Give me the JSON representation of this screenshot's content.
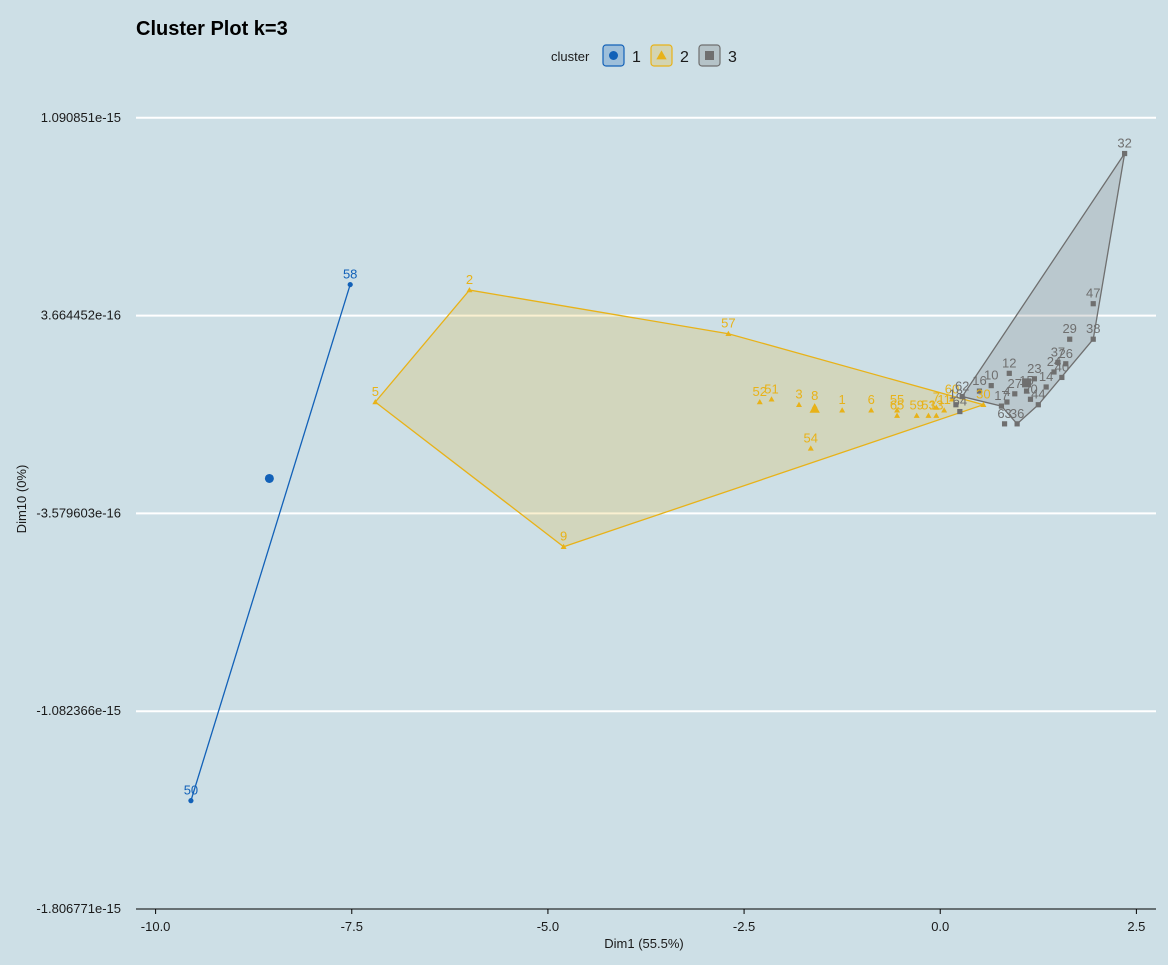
{
  "chart_data": {
    "type": "scatter",
    "title": "Cluster Plot k=3",
    "xlabel": "Dim1 (55.5%)",
    "ylabel": "Dim10 (0%)",
    "xlim": [
      -10.25,
      2.75
    ],
    "ylim": [
      -1.806771e-15,
      1.2e-15
    ],
    "x_ticks": [
      {
        "value": -10.0,
        "label": "-10.0"
      },
      {
        "value": -7.5,
        "label": "-7.5"
      },
      {
        "value": -5.0,
        "label": "-5.0"
      },
      {
        "value": -2.5,
        "label": "-2.5"
      },
      {
        "value": 0.0,
        "label": "0.0"
      },
      {
        "value": 2.5,
        "label": "2.5"
      }
    ],
    "y_ticks": [
      {
        "value": 1.090851e-15,
        "label": "1.090851e-15"
      },
      {
        "value": 3.664452e-16,
        "label": "3.664452e-16"
      },
      {
        "value": -3.579603e-16,
        "label": "-3.579603e-16"
      },
      {
        "value": -1.082366e-15,
        "label": "-1.082366e-15"
      },
      {
        "value": -1.806771e-15,
        "label": "-1.806771e-15"
      }
    ],
    "grid": "horizontal major lines",
    "legend": {
      "title": "cluster",
      "position": "top",
      "entries": [
        "1",
        "2",
        "3"
      ]
    },
    "series": [
      {
        "name": "1",
        "color": "#1261b8",
        "shape": "circle",
        "hull": [
          "58",
          "50"
        ],
        "center": {
          "x": -8.55,
          "y": -2.3e-16
        },
        "points": [
          {
            "label": "58",
            "x": -7.52,
            "y": 4.8e-16
          },
          {
            "label": "50",
            "x": -9.55,
            "y": -1.41e-15
          }
        ]
      },
      {
        "name": "2",
        "color": "#e8b218",
        "shape": "triangle",
        "hull": [
          "2",
          "57",
          "30",
          "9",
          "5"
        ],
        "center": {
          "x": -1.6,
          "y": 2.5e-17
        },
        "points": [
          {
            "label": "2",
            "x": -6.0,
            "y": 4.6e-16
          },
          {
            "label": "57",
            "x": -2.7,
            "y": 3e-16
          },
          {
            "label": "5",
            "x": -7.2,
            "y": 5e-17
          },
          {
            "label": "9",
            "x": -4.8,
            "y": -4.8e-16
          },
          {
            "label": "52",
            "x": -2.3,
            "y": 5e-17
          },
          {
            "label": "51",
            "x": -2.15,
            "y": 6e-17
          },
          {
            "label": "3",
            "x": -1.8,
            "y": 4e-17
          },
          {
            "label": "8",
            "x": -1.6,
            "y": 3.5e-17
          },
          {
            "label": "1",
            "x": -1.25,
            "y": 2e-17
          },
          {
            "label": "6",
            "x": -0.88,
            "y": 2e-17
          },
          {
            "label": "55",
            "x": -0.55,
            "y": 2e-17
          },
          {
            "label": "65",
            "x": -0.55,
            "y": 0.0
          },
          {
            "label": "59",
            "x": -0.3,
            "y": 0.0
          },
          {
            "label": "53",
            "x": -0.15,
            "y": 0.0
          },
          {
            "label": "13",
            "x": -0.05,
            "y": 0.0
          },
          {
            "label": "7",
            "x": -0.05,
            "y": 3e-17
          },
          {
            "label": "11",
            "x": 0.05,
            "y": 2e-17
          },
          {
            "label": "60",
            "x": 0.15,
            "y": 6e-17
          },
          {
            "label": "30",
            "x": 0.55,
            "y": 4e-17
          },
          {
            "label": "54",
            "x": -1.65,
            "y": -1.2e-16
          }
        ]
      },
      {
        "name": "3",
        "color": "#6f6f6f",
        "shape": "square",
        "hull": [
          "32",
          "38",
          "44",
          "36",
          "17",
          "62"
        ],
        "center": {
          "x": 1.1,
          "y": 1.2e-16
        },
        "points": [
          {
            "label": "32",
            "x": 2.35,
            "y": 9.6e-16
          },
          {
            "label": "47",
            "x": 1.95,
            "y": 4.1e-16
          },
          {
            "label": "29",
            "x": 1.65,
            "y": 2.8e-16
          },
          {
            "label": "38",
            "x": 1.95,
            "y": 2.8e-16
          },
          {
            "label": "37",
            "x": 1.5,
            "y": 1.95e-16
          },
          {
            "label": "26",
            "x": 1.6,
            "y": 1.9e-16
          },
          {
            "label": "12",
            "x": 0.88,
            "y": 1.55e-16
          },
          {
            "label": "24",
            "x": 1.45,
            "y": 1.6e-16
          },
          {
            "label": "40",
            "x": 1.55,
            "y": 1.4e-16
          },
          {
            "label": "23",
            "x": 1.2,
            "y": 1.35e-16
          },
          {
            "label": "10",
            "x": 0.65,
            "y": 1.1e-16
          },
          {
            "label": "16",
            "x": 0.5,
            "y": 9e-17
          },
          {
            "label": "14",
            "x": 1.35,
            "y": 1.05e-16
          },
          {
            "label": "27",
            "x": 0.95,
            "y": 8e-17
          },
          {
            "label": "62",
            "x": 0.28,
            "y": 7e-17
          },
          {
            "label": "4",
            "x": 0.85,
            "y": 5e-17
          },
          {
            "label": "17",
            "x": 0.78,
            "y": 3.5e-17
          },
          {
            "label": "18",
            "x": 0.2,
            "y": 4e-17
          },
          {
            "label": "64",
            "x": 0.25,
            "y": 1.5e-17
          },
          {
            "label": "63",
            "x": 0.82,
            "y": -3e-17
          },
          {
            "label": "36",
            "x": 0.98,
            "y": -3e-17
          },
          {
            "label": "44",
            "x": 1.25,
            "y": 4e-17
          },
          {
            "label": "15",
            "x": 1.1,
            "y": 9e-17
          },
          {
            "label": "20",
            "x": 1.15,
            "y": 6e-17
          }
        ]
      }
    ]
  }
}
